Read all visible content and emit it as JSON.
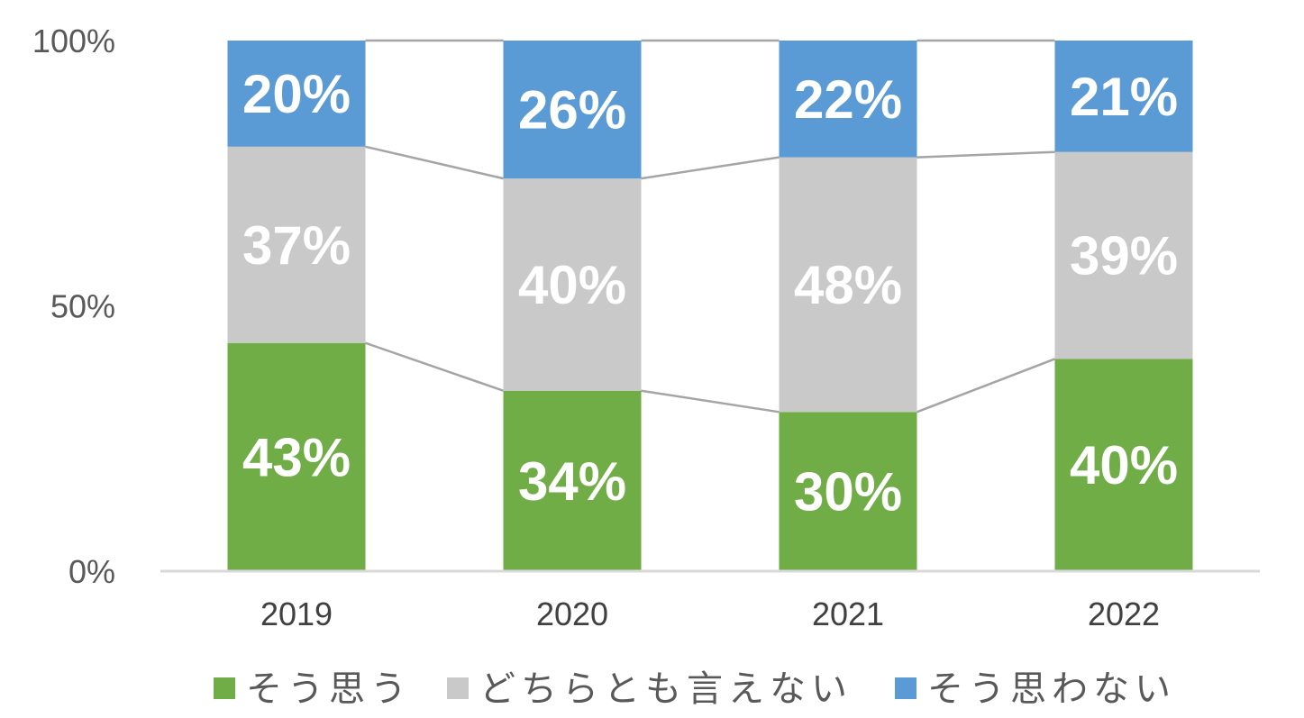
{
  "chart_data": {
    "type": "bar",
    "stacked": true,
    "percent": true,
    "categories": [
      "2019",
      "2020",
      "2021",
      "2022"
    ],
    "series": [
      {
        "name": "そう思う",
        "color": "#70ad47",
        "values": [
          43,
          34,
          30,
          40
        ],
        "labels": [
          "43%",
          "34%",
          "30%",
          "40%"
        ]
      },
      {
        "name": "どちらとも言えない",
        "color": "#c9c9c9",
        "values": [
          37,
          40,
          48,
          39
        ],
        "labels": [
          "37%",
          "40%",
          "48%",
          "39%"
        ]
      },
      {
        "name": "そう思わない",
        "color": "#5b9bd5",
        "values": [
          20,
          26,
          22,
          21
        ],
        "labels": [
          "20%",
          "26%",
          "22%",
          "21%"
        ]
      }
    ],
    "yticks": [
      "0%",
      "50%",
      "100%"
    ],
    "ylim": [
      0,
      100
    ],
    "series_lines": true,
    "grid": false,
    "legend_position": "bottom"
  }
}
